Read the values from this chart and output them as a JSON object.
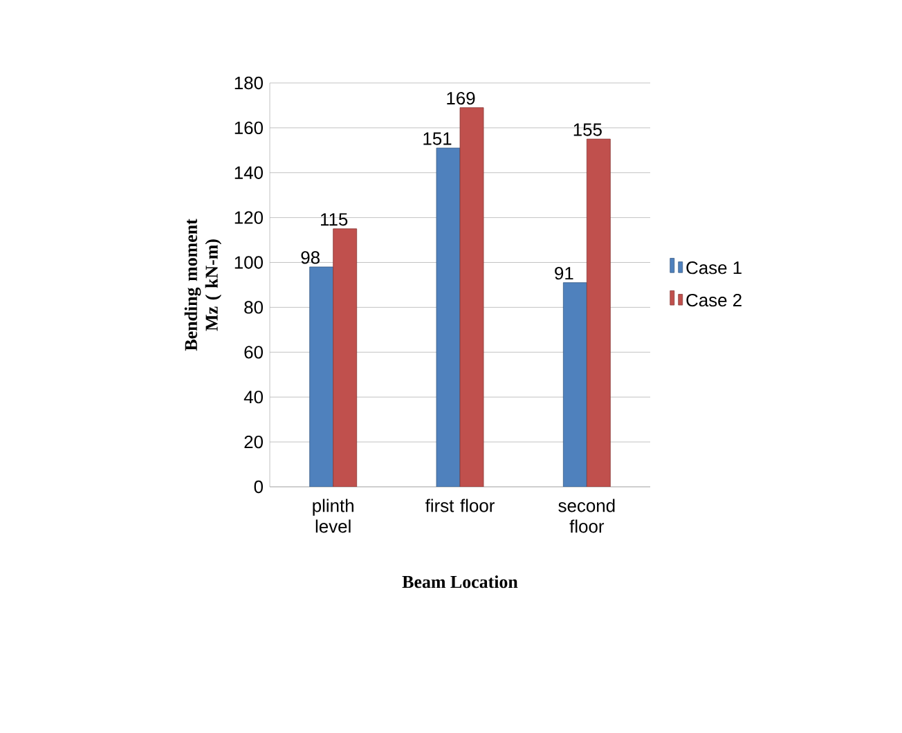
{
  "chart_data": {
    "type": "bar",
    "categories": [
      "plinth level",
      "first floor",
      "second floor"
    ],
    "series": [
      {
        "name": "Case 1",
        "color": "#4f81bd",
        "values": [
          98,
          151,
          91
        ]
      },
      {
        "name": "Case 2",
        "color": "#c0504d",
        "values": [
          115,
          169,
          155
        ]
      }
    ],
    "ylim": [
      0,
      180
    ],
    "yticks": [
      0,
      20,
      40,
      60,
      80,
      100,
      120,
      140,
      160,
      180
    ],
    "xlabel": "Beam Location",
    "ylabel": "Bending moment Mz ( kN-m)",
    "grid": "y",
    "legend": "right",
    "data_labels": true
  }
}
